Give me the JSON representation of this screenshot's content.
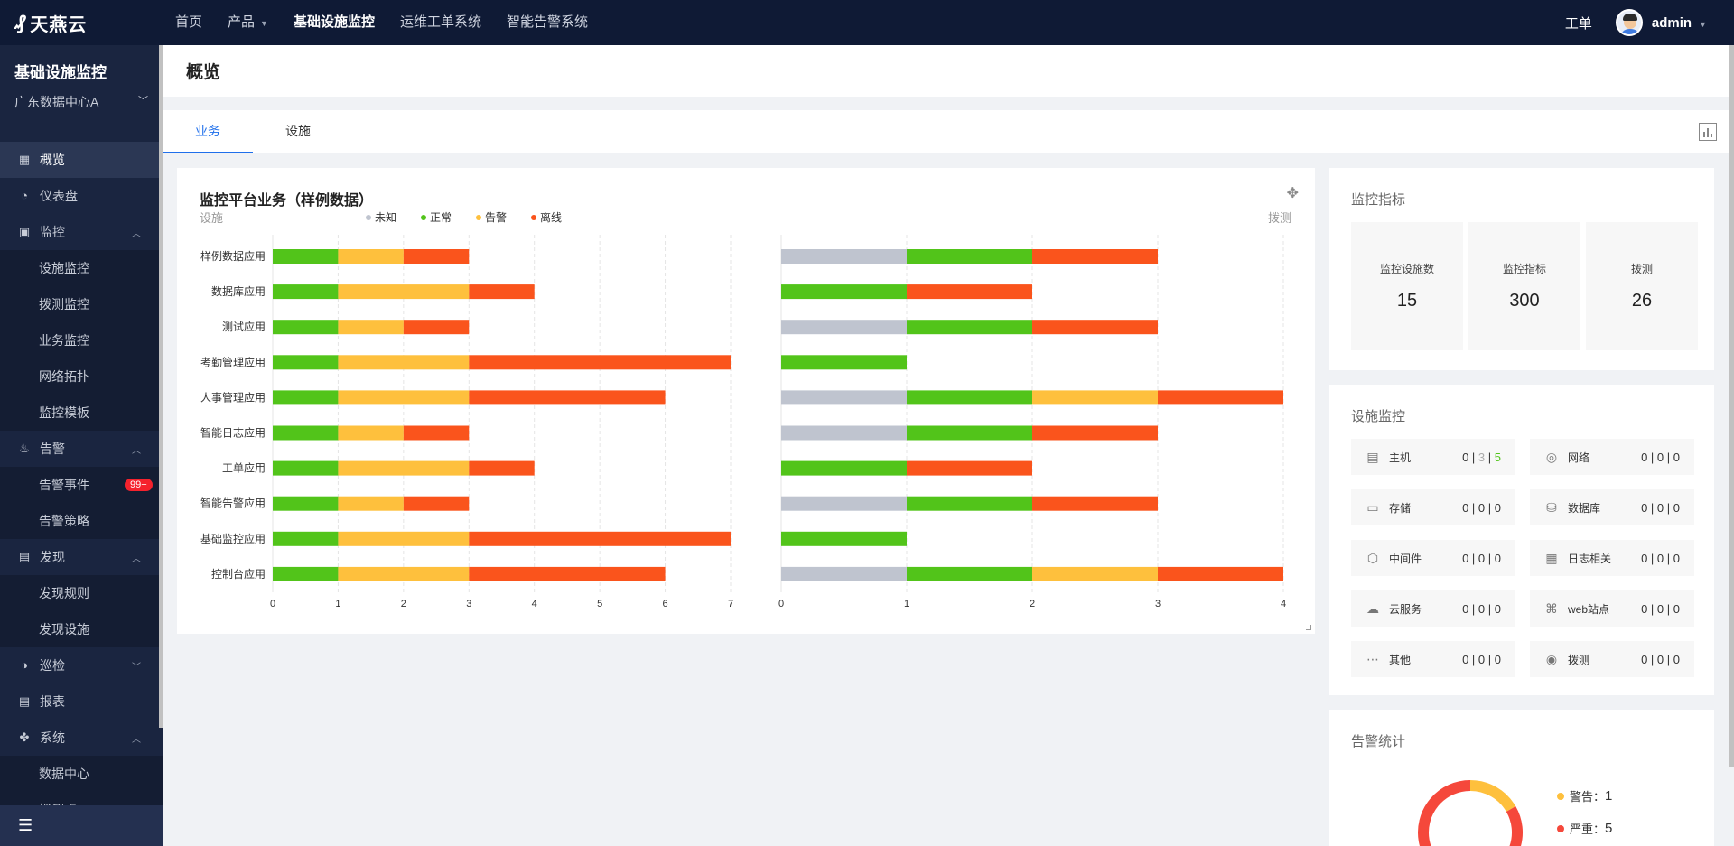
{
  "brand": {
    "name": "天燕云"
  },
  "topnav": {
    "items": [
      {
        "label": "首页",
        "active": false,
        "has_caret": false
      },
      {
        "label": "产品",
        "active": false,
        "has_caret": true
      },
      {
        "label": "基础设施监控",
        "active": true,
        "has_caret": false
      },
      {
        "label": "运维工单系统",
        "active": false,
        "has_caret": false
      },
      {
        "label": "智能告警系统",
        "active": false,
        "has_caret": false
      }
    ],
    "ticket_label": "工单",
    "username": "admin"
  },
  "sidebar": {
    "title": "基础设施监控",
    "datacenter": "广东数据中心A",
    "menu": [
      {
        "type": "item",
        "label": "概览",
        "icon": "grid-icon",
        "active": true
      },
      {
        "type": "item",
        "label": "仪表盘",
        "icon": "gauge-icon"
      },
      {
        "type": "item",
        "label": "监控",
        "icon": "monitor-icon",
        "expanded": true
      },
      {
        "type": "sub",
        "label": "设施监控"
      },
      {
        "type": "sub",
        "label": "拨测监控"
      },
      {
        "type": "sub",
        "label": "业务监控"
      },
      {
        "type": "sub",
        "label": "网络拓扑"
      },
      {
        "type": "sub",
        "label": "监控模板"
      },
      {
        "type": "item",
        "label": "告警",
        "icon": "alarm-icon",
        "expanded": true
      },
      {
        "type": "sub",
        "label": "告警事件",
        "badge": "99+"
      },
      {
        "type": "sub",
        "label": "告警策略"
      },
      {
        "type": "item",
        "label": "发现",
        "icon": "discover-icon",
        "expanded": true
      },
      {
        "type": "sub",
        "label": "发现规则"
      },
      {
        "type": "sub",
        "label": "发现设施"
      },
      {
        "type": "item",
        "label": "巡检",
        "icon": "inspect-icon",
        "expanded": false
      },
      {
        "type": "item",
        "label": "报表",
        "icon": "report-icon"
      },
      {
        "type": "item",
        "label": "系统",
        "icon": "system-icon",
        "expanded": true
      },
      {
        "type": "sub",
        "label": "数据中心"
      },
      {
        "type": "sub",
        "label": "拨测点"
      }
    ]
  },
  "page": {
    "title": "概览"
  },
  "tabs": [
    {
      "label": "业务",
      "active": true
    },
    {
      "label": "设施",
      "active": false
    }
  ],
  "chart_data": {
    "type": "bar",
    "title": "监控平台业务（样例数据）",
    "legend": [
      {
        "name": "未知",
        "color": "#bfc4cf"
      },
      {
        "name": "正常",
        "color": "#52c41a"
      },
      {
        "name": "告警",
        "color": "#fec03d"
      },
      {
        "name": "离线",
        "color": "#fa541c"
      }
    ],
    "categories": [
      "样例数据应用",
      "数据库应用",
      "测试应用",
      "考勤管理应用",
      "人事管理应用",
      "智能日志应用",
      "工单应用",
      "智能告警应用",
      "基础监控应用",
      "控制台应用"
    ],
    "left": {
      "label": "设施",
      "xlim": [
        0,
        7
      ],
      "ticks": [
        0,
        1,
        2,
        3,
        4,
        5,
        6,
        7
      ],
      "series": [
        {
          "name": "正常",
          "values": [
            1,
            1,
            1,
            1,
            1,
            1,
            1,
            1,
            1,
            1
          ]
        },
        {
          "name": "告警",
          "values": [
            1,
            2,
            1,
            2,
            2,
            1,
            2,
            1,
            2,
            2
          ]
        },
        {
          "name": "离线",
          "values": [
            1,
            1,
            1,
            4,
            3,
            1,
            1,
            1,
            4,
            3
          ]
        }
      ]
    },
    "right": {
      "label": "拨测",
      "xlim": [
        0,
        4
      ],
      "ticks": [
        0,
        1,
        2,
        3,
        4
      ],
      "series": [
        {
          "name": "未知",
          "values": [
            1,
            0,
            1,
            0,
            1,
            1,
            0,
            1,
            0,
            1
          ]
        },
        {
          "name": "正常",
          "values": [
            1,
            1,
            1,
            1,
            1,
            1,
            1,
            1,
            1,
            1
          ]
        },
        {
          "name": "告警",
          "values": [
            0,
            0,
            0,
            0,
            1,
            0,
            0,
            0,
            0,
            1
          ]
        },
        {
          "name": "离线",
          "values": [
            1,
            1,
            1,
            0,
            1,
            1,
            1,
            1,
            0,
            1
          ]
        }
      ]
    }
  },
  "metrics": {
    "title": "监控指标",
    "items": [
      {
        "label": "监控设施数",
        "value": "15"
      },
      {
        "label": "监控指标",
        "value": "300"
      },
      {
        "label": "拨测",
        "value": "26"
      }
    ]
  },
  "facility": {
    "title": "设施监控",
    "items": [
      {
        "name": "主机",
        "icon": "server-icon",
        "v1": "0",
        "v2": "3",
        "v3": "5"
      },
      {
        "name": "网络",
        "icon": "network-icon",
        "v1": "0",
        "v2": "0",
        "v3": "0"
      },
      {
        "name": "存储",
        "icon": "storage-icon",
        "v1": "0",
        "v2": "0",
        "v3": "0"
      },
      {
        "name": "数据库",
        "icon": "database-icon",
        "v1": "0",
        "v2": "0",
        "v3": "0"
      },
      {
        "name": "中间件",
        "icon": "middleware-icon",
        "v1": "0",
        "v2": "0",
        "v3": "0"
      },
      {
        "name": "日志相关",
        "icon": "log-icon",
        "v1": "0",
        "v2": "0",
        "v3": "0"
      },
      {
        "name": "云服务",
        "icon": "cloud-icon",
        "v1": "0",
        "v2": "0",
        "v3": "0"
      },
      {
        "name": "web站点",
        "icon": "web-icon",
        "v1": "0",
        "v2": "0",
        "v3": "0"
      },
      {
        "name": "其他",
        "icon": "other-icon",
        "v1": "0",
        "v2": "0",
        "v3": "0"
      },
      {
        "name": "拨测",
        "icon": "probe-icon",
        "v1": "0",
        "v2": "0",
        "v3": "0"
      }
    ]
  },
  "alert_stats": {
    "title": "告警统计",
    "items": [
      {
        "label": "警告：",
        "value": 1,
        "color": "#fec03d"
      },
      {
        "label": "严重：",
        "value": 5,
        "color": "#f5483b"
      }
    ]
  }
}
